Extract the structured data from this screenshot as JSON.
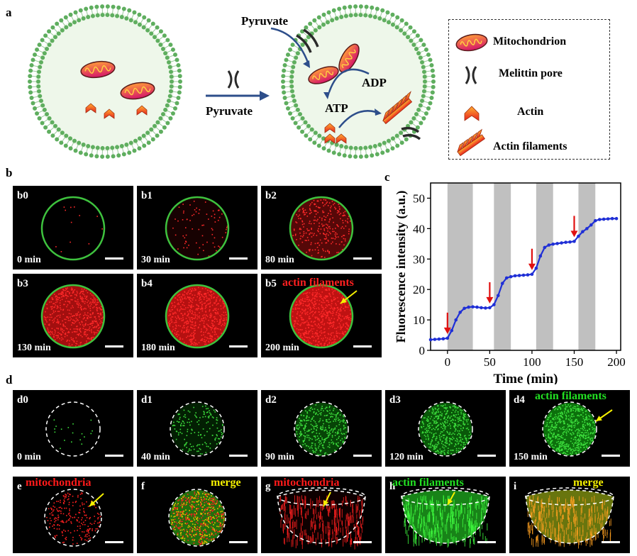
{
  "labels": {
    "a": "a",
    "b": "b",
    "c": "c",
    "d": "d",
    "e": "e",
    "f": "f",
    "g": "g",
    "h": "h",
    "i": "i"
  },
  "schematic": {
    "pyruvate_arrow": "Pyruvate",
    "pyruvate_in": "Pyruvate",
    "adp": "ADP",
    "atp": "ATP"
  },
  "legend": {
    "mitochondrion": "Mitochondrion",
    "melittin_pore": "Melittin pore",
    "actin": "Actin",
    "actin_filaments": "Actin filaments"
  },
  "panel_b": [
    {
      "tag": "b0",
      "time": "0 min",
      "red_level": 0.02
    },
    {
      "tag": "b1",
      "time": "30 min",
      "red_level": 0.12
    },
    {
      "tag": "b2",
      "time": "80 min",
      "red_level": 0.45
    },
    {
      "tag": "b3",
      "time": "130 min",
      "red_level": 0.85
    },
    {
      "tag": "b4",
      "time": "180 min",
      "red_level": 0.95
    },
    {
      "tag": "b5",
      "time": "200 min",
      "red_level": 1.0,
      "annotation": "actin filaments"
    }
  ],
  "panel_d": [
    {
      "tag": "d0",
      "time": "0  min",
      "green_level": 0.03
    },
    {
      "tag": "d1",
      "time": "40  min",
      "green_level": 0.25
    },
    {
      "tag": "d2",
      "time": "90  min",
      "green_level": 0.55
    },
    {
      "tag": "d3",
      "time": "120  min",
      "green_level": 0.7
    },
    {
      "tag": "d4",
      "time": "150  min",
      "green_level": 0.9,
      "annotation": "actin filaments"
    }
  ],
  "panel_efghi": {
    "e": "mitochondria",
    "f": "merge",
    "g": "mitochondria",
    "h": "actin filaments",
    "i": "merge"
  },
  "colors": {
    "membrane": "#5aa85a",
    "fluor_red": "#ff1a1a",
    "fluor_green": "#22cc22",
    "curve": "#1f2fd6",
    "arrow_red": "#e01010",
    "shade": "#c0c0c0"
  },
  "chart_data": {
    "type": "line",
    "xlabel": "Time (min)",
    "ylabel": "Fluorescence intensity (a.u.)",
    "xlim": [
      -20,
      205
    ],
    "ylim": [
      0,
      55
    ],
    "xticks": [
      0,
      50,
      100,
      150,
      200
    ],
    "yticks": [
      0,
      10,
      20,
      30,
      40,
      50
    ],
    "shaded_intervals": [
      [
        0,
        30
      ],
      [
        55,
        75
      ],
      [
        105,
        125
      ],
      [
        155,
        175
      ]
    ],
    "arrows_at": [
      0,
      50,
      100,
      150
    ],
    "series": [
      {
        "x": [
          -20,
          -15,
          -10,
          -5,
          0,
          5,
          10,
          15,
          20,
          25,
          30,
          35,
          40,
          45,
          50,
          55,
          60,
          65,
          70,
          75,
          80,
          85,
          90,
          95,
          100,
          105,
          110,
          115,
          120,
          125,
          130,
          135,
          140,
          145,
          150,
          155,
          160,
          165,
          170,
          175,
          180,
          185,
          190,
          195,
          200
        ],
        "y": [
          3.5,
          3.6,
          3.7,
          3.8,
          4.0,
          6.5,
          10.0,
          12.5,
          13.8,
          14.2,
          14.3,
          14.2,
          14.0,
          13.9,
          14.0,
          15.0,
          18.0,
          22.0,
          23.8,
          24.2,
          24.5,
          24.6,
          24.7,
          24.8,
          25.0,
          27.0,
          31.0,
          33.8,
          34.6,
          34.9,
          35.1,
          35.3,
          35.5,
          35.6,
          35.8,
          37.5,
          39.0,
          40.0,
          41.2,
          42.6,
          43.0,
          43.1,
          43.2,
          43.3,
          43.3
        ]
      }
    ]
  }
}
